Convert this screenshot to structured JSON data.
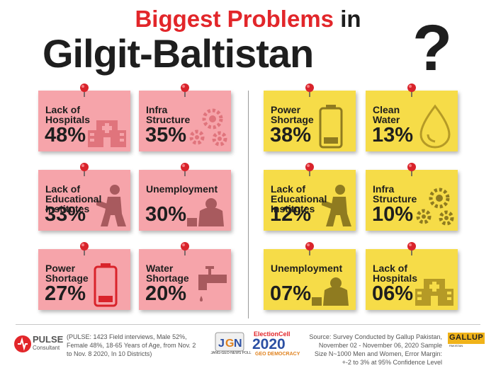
{
  "title": {
    "part1": "Biggest Problems",
    "part2": " in",
    "line2": "Gilgit-Baltistan",
    "qmark": "?"
  },
  "left_notes": [
    {
      "label": "Lack of\nHospitals",
      "value": "48%",
      "icon": "hospital-icon"
    },
    {
      "label": "Infra\nStructure",
      "value": "35%",
      "icon": "gears-icon"
    },
    {
      "label": "Lack of\nEducational\nInstitutes",
      "value": "33%",
      "icon": "reading-person-icon"
    },
    {
      "label": "Unemployment",
      "value": "30%",
      "icon": "worried-man-icon"
    },
    {
      "label": "Power\nShortage",
      "value": "27%",
      "icon": "low-battery-icon"
    },
    {
      "label": "Water\nShortage",
      "value": "20%",
      "icon": "faucet-icon"
    }
  ],
  "right_notes": [
    {
      "label": "Power\nShortage",
      "value": "38%",
      "icon": "low-battery-icon"
    },
    {
      "label": "Clean\nWater",
      "value": "13%",
      "icon": "water-drop-icon"
    },
    {
      "label": "Lack of\nEducational\nInstitutes",
      "value": "12%",
      "icon": "reading-person-icon"
    },
    {
      "label": "Infra\nStructure",
      "value": "10%",
      "icon": "gears-icon"
    },
    {
      "label": "Unemployment",
      "value": "07%",
      "icon": "worried-man-icon"
    },
    {
      "label": "Lack of\nHospitals",
      "value": "06%",
      "icon": "hospital-icon"
    }
  ],
  "footer": {
    "pulse_name": "PULSE",
    "pulse_sub": "Consultant",
    "pulse_note": "(PULSE:  1423 Field interviews, Male 52%, Female 48%, 18-65 Years of Age, from Nov. 2 to Nov. 8 2020, In 10 Districts)",
    "jgn_caption": "JANG-GEO-NEWS POLL",
    "ec_top": "ElectionCell",
    "ec_year": "2020",
    "ec_bottom": "GEO DEMOCRACY",
    "gallup_source": "Source: Survey Conducted by Gallup Pakistan, November 02 - November 06, 2020 Sample Size N~1000 Men and Women, Error Margin: +-2 to 3% at 95% Confidence Level",
    "gallup_name": "GALLUP",
    "gallup_sub": "PAKISTAN"
  },
  "colors": {
    "accent_red": "#e2262a",
    "note_pink": "#f6a4aa",
    "note_yellow": "#f6dc48",
    "text_dark": "#1e1e1e"
  }
}
